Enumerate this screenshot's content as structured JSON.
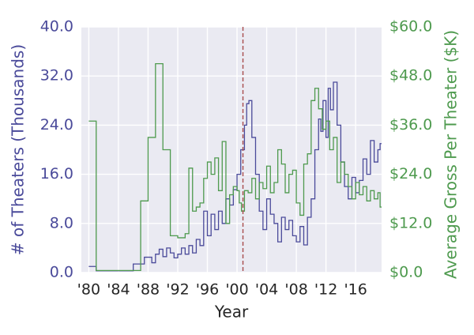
{
  "chart_data": {
    "type": "line",
    "title": "",
    "xlabel": "Year",
    "ylabel_left": "# of Theaters (Thousands)",
    "ylabel_right": "Average Gross Per Theater ($K)",
    "x_ticks": [
      1980,
      1984,
      1988,
      1992,
      1996,
      2000,
      2004,
      2008,
      2012,
      2016
    ],
    "x_tick_labels": [
      "'80",
      "'84",
      "'88",
      "'92",
      "'96",
      "'00",
      "'04",
      "'08",
      "'12",
      "'16"
    ],
    "xlim": [
      1979.0,
      2019.5
    ],
    "ylim_left": [
      0,
      40
    ],
    "ylim_right": [
      0,
      60
    ],
    "y_ticks_left": [
      0,
      8,
      16,
      24,
      32,
      40
    ],
    "y_tick_labels_left": [
      "0.0",
      "8.0",
      "16.0",
      "24.0",
      "32.0",
      "40.0"
    ],
    "y_ticks_right": [
      0,
      12,
      24,
      36,
      48,
      60
    ],
    "y_tick_labels_right": [
      "$0.0",
      "$12.0",
      "$24.0",
      "$36.0",
      "$48.0",
      "$60.0"
    ],
    "grid": true,
    "vline": {
      "x": 2000.8,
      "color": "#a84c4c",
      "style": "dashed"
    },
    "series": [
      {
        "name": "# of Theaters (Thousands)",
        "axis": "left",
        "color": "#4a4a9a",
        "step": true,
        "x": [
          1980,
          1981,
          1982,
          1986,
          1987,
          1987.5,
          1988.5,
          1989,
          1989.5,
          1990,
          1990.5,
          1991,
          1991.5,
          1992,
          1992.5,
          1993,
          1993.5,
          1994,
          1994.5,
          1995,
          1995.5,
          1996,
          1996.5,
          1997,
          1997.5,
          1998,
          1998.5,
          1999,
          1999.5,
          2000,
          2000.5,
          2001,
          2001.3,
          2001.6,
          2002,
          2002.5,
          2003,
          2003.5,
          2004,
          2004.5,
          2005,
          2005.5,
          2006,
          2006.5,
          2007,
          2007.5,
          2008,
          2008.5,
          2009,
          2009.5,
          2010,
          2010.5,
          2011,
          2011.3,
          2011.6,
          2012,
          2012.3,
          2012.6,
          2013,
          2013.5,
          2014,
          2014.5,
          2015,
          2015.5,
          2016,
          2016.5,
          2017,
          2017.5,
          2018,
          2018.5,
          2019,
          2019.3
        ],
        "values": [
          1.0,
          0.3,
          0.3,
          1.4,
          1.4,
          2.5,
          1.6,
          3.0,
          3.8,
          2.6,
          4.0,
          3.2,
          2.4,
          3.0,
          4.0,
          3.0,
          4.4,
          3.2,
          5.4,
          4.4,
          10.0,
          6.0,
          9.5,
          7.0,
          10.0,
          8.0,
          12.0,
          11.0,
          13.5,
          16.0,
          20.0,
          24.0,
          27.5,
          28.0,
          22.0,
          16.0,
          10.0,
          7.0,
          12.0,
          9.5,
          8.0,
          5.0,
          9.0,
          7.0,
          8.5,
          6.0,
          5.0,
          7.5,
          4.5,
          9.0,
          12.0,
          20.0,
          25.0,
          23.0,
          28.0,
          22.0,
          30.0,
          26.5,
          31.0,
          24.0,
          18.0,
          14.0,
          12.0,
          15.5,
          13.0,
          15.0,
          18.5,
          16.0,
          21.5,
          18.0,
          20.0,
          21.0
        ]
      },
      {
        "name": "Average Gross Per Theater ($K)",
        "axis": "right",
        "color": "#4e9a4e",
        "step": true,
        "x": [
          1980,
          1981,
          1986,
          1987,
          1988,
          1989,
          1990,
          1991,
          1992,
          1993,
          1993.5,
          1994,
          1994.5,
          1995,
          1995.5,
          1996,
          1996.5,
          1997,
          1997.5,
          1998,
          1998.5,
          1999,
          1999.5,
          2000,
          2000.3,
          2000.6,
          2001,
          2001.5,
          2002,
          2002.5,
          2003,
          2003.5,
          2004,
          2004.5,
          2005,
          2005.5,
          2006,
          2006.5,
          2007,
          2007.5,
          2008,
          2008.5,
          2009,
          2009.5,
          2010,
          2010.5,
          2011,
          2011.5,
          2012,
          2012.5,
          2013,
          2013.5,
          2014,
          2014.5,
          2015,
          2015.5,
          2016,
          2016.5,
          2017,
          2017.5,
          2018,
          2018.5,
          2019,
          2019.3
        ],
        "values": [
          37.0,
          0.5,
          0.5,
          17.5,
          33.0,
          51.0,
          30.0,
          9.0,
          8.5,
          9.5,
          25.5,
          15.0,
          16.0,
          17.0,
          23.0,
          27.0,
          24.0,
          28.0,
          20.0,
          32.0,
          12.0,
          19.0,
          21.0,
          20.0,
          17.0,
          15.0,
          20.0,
          19.5,
          23.0,
          18.0,
          22.0,
          20.5,
          26.0,
          19.5,
          22.0,
          30.0,
          26.5,
          19.5,
          24.0,
          25.0,
          17.0,
          14.0,
          26.5,
          29.0,
          42.0,
          45.0,
          40.0,
          35.0,
          37.0,
          30.0,
          33.0,
          22.0,
          27.0,
          24.0,
          21.0,
          18.0,
          22.0,
          19.0,
          21.0,
          17.5,
          20.0,
          18.0,
          19.5,
          16.0
        ]
      }
    ]
  }
}
